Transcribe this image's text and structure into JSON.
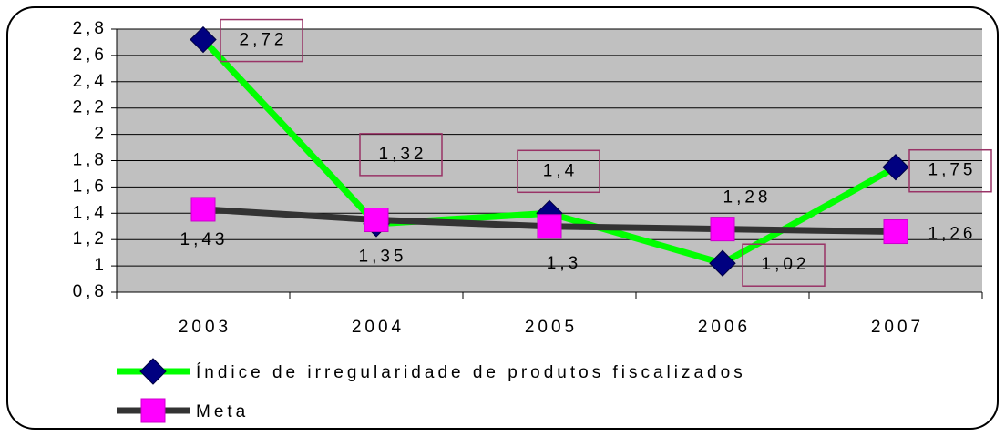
{
  "chart_data": {
    "type": "line",
    "categories": [
      "2003",
      "2004",
      "2005",
      "2006",
      "2007"
    ],
    "series": [
      {
        "name": "Índice de irregularidade de produtos fiscalizados",
        "color": "#00ff00",
        "marker_color": "#000080",
        "values": [
          2.72,
          1.32,
          1.4,
          1.02,
          1.75
        ],
        "value_labels": [
          "2,72",
          "1,32",
          "1,4",
          "1,02",
          "1,75"
        ]
      },
      {
        "name": "Meta",
        "color": "#333333",
        "marker_color": "#ff00ff",
        "values": [
          1.43,
          1.35,
          1.3,
          1.28,
          1.26
        ],
        "value_labels": [
          "1,43",
          "1,35",
          "1,3",
          "1,28",
          "1,26"
        ]
      }
    ],
    "ylim": [
      0.8,
      2.8
    ],
    "yticks": [
      {
        "value": 0.8,
        "label": "0,8"
      },
      1,
      {
        "value": 1.2,
        "label": "1,2"
      },
      {
        "value": 1.4,
        "label": "1,4"
      },
      {
        "value": 1.6,
        "label": "1,6"
      },
      {
        "value": 1.8,
        "label": "1,8"
      },
      2,
      {
        "value": 2.2,
        "label": "2,2"
      },
      {
        "value": 2.4,
        "label": "2,4"
      },
      {
        "value": 2.6,
        "label": "2,6"
      },
      {
        "value": 2.8,
        "label": "2,8"
      }
    ],
    "grid": true
  }
}
